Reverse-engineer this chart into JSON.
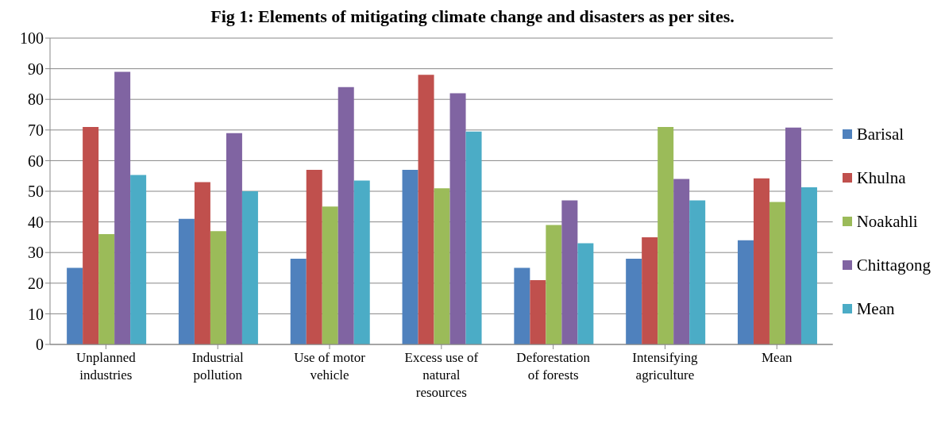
{
  "chart_data": {
    "type": "bar",
    "title": "Fig 1: Elements of mitigating climate change and disasters as per sites.",
    "categories": [
      "Unplanned industries",
      "Industrial pollution",
      "Use of motor vehicle",
      "Excess use of natural resources",
      "Deforestation of forests",
      "Intensifying agriculture",
      "Mean"
    ],
    "series": [
      {
        "name": "Barisal",
        "color": "#4f81bd",
        "values": [
          25,
          41,
          28,
          57,
          25,
          28,
          34
        ]
      },
      {
        "name": "Khulna",
        "color": "#c0504d",
        "values": [
          71,
          53,
          57,
          88,
          21,
          35,
          54.2
        ]
      },
      {
        "name": "Noakahli",
        "color": "#9bbb59",
        "values": [
          36,
          37,
          45,
          51,
          39,
          71,
          46.5
        ]
      },
      {
        "name": "Chittagong",
        "color": "#8064a2",
        "values": [
          89,
          69,
          84,
          82,
          47,
          54,
          70.8
        ]
      },
      {
        "name": "Mean",
        "color": "#4bacc6",
        "values": [
          55.3,
          50,
          53.5,
          69.5,
          33,
          47,
          51.3
        ]
      }
    ],
    "ylim": [
      0,
      100
    ],
    "yticks": [
      0,
      10,
      20,
      30,
      40,
      50,
      60,
      70,
      80,
      90,
      100
    ],
    "grid": "y",
    "legend": "right"
  }
}
